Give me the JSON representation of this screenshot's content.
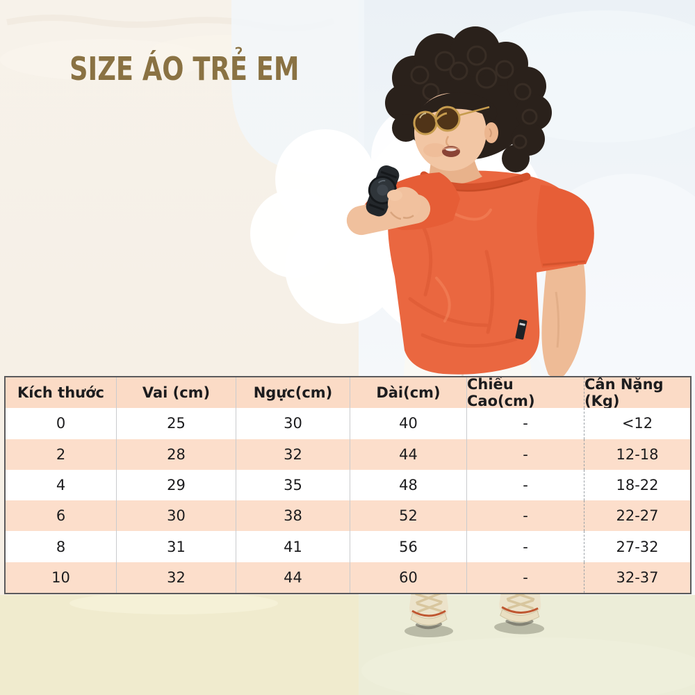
{
  "title": "SIZE ÁO TRẺ EM",
  "size_table": {
    "columns": [
      "Kích thước",
      "Vai (cm)",
      "Ngực(cm)",
      "Dài(cm)",
      "Chiều Cao(cm)",
      "Cân Nặng (Kg)"
    ],
    "rows": [
      [
        "0",
        "25",
        "30",
        "40",
        "-",
        "<12"
      ],
      [
        "2",
        "28",
        "32",
        "44",
        "-",
        "12-18"
      ],
      [
        "4",
        "29",
        "35",
        "48",
        "-",
        "18-22"
      ],
      [
        "6",
        "30",
        "38",
        "52",
        "-",
        "22-27"
      ],
      [
        "8",
        "31",
        "41",
        "56",
        "-",
        "27-32"
      ],
      [
        "10",
        "32",
        "44",
        "60",
        "-",
        "32-37"
      ]
    ]
  },
  "illustration": {
    "subject": "boy-with-curly-hair-sunglasses-orange-tshirt-looking-at-smartwatch",
    "parts": [
      "curly-hair",
      "round-sunglasses",
      "orange-tshirt",
      "smartwatch",
      "white-pants",
      "cream-sneakers",
      "cloud"
    ]
  },
  "colors": {
    "title_color": "#8a7243",
    "header_bg": "#fbdbc6",
    "alt_row_bg": "#fcdecb",
    "table_border": "#5a5a5c",
    "table_text": "#1c1c1e",
    "bg_top_left": "#f7f2ea",
    "bg_top_right": "#ebf1f6",
    "bg_bottom_left": "#f0ebce",
    "bg_bottom_right": "#ecedd8",
    "tshirt_orange": "#ea6740"
  }
}
